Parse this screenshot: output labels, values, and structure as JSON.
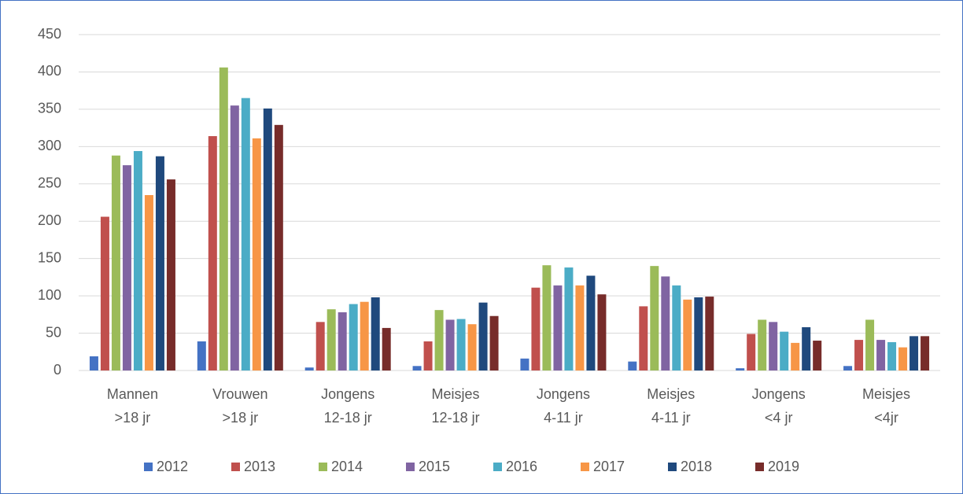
{
  "chart_data": {
    "type": "bar",
    "categories": [
      [
        "Mannen",
        ">18 jr"
      ],
      [
        "Vrouwen",
        ">18 jr"
      ],
      [
        "Jongens",
        "12-18 jr"
      ],
      [
        "Meisjes",
        "12-18 jr"
      ],
      [
        "Jongens",
        "4-11 jr"
      ],
      [
        "Meisjes",
        "4-11 jr"
      ],
      [
        "Jongens",
        "<4 jr"
      ],
      [
        "Meisjes",
        "<4jr"
      ]
    ],
    "series": [
      {
        "name": "2012",
        "color": "#4472c4",
        "values": [
          19,
          39,
          4,
          6,
          16,
          12,
          3,
          6
        ]
      },
      {
        "name": "2013",
        "color": "#c0504d",
        "values": [
          206,
          314,
          65,
          39,
          111,
          86,
          49,
          41
        ]
      },
      {
        "name": "2014",
        "color": "#9bbb59",
        "values": [
          288,
          406,
          82,
          81,
          141,
          140,
          68,
          68
        ]
      },
      {
        "name": "2015",
        "color": "#8064a2",
        "values": [
          275,
          355,
          78,
          68,
          114,
          126,
          65,
          41
        ]
      },
      {
        "name": "2016",
        "color": "#4bacc6",
        "values": [
          294,
          365,
          89,
          69,
          138,
          114,
          52,
          38
        ]
      },
      {
        "name": "2017",
        "color": "#f79646",
        "values": [
          235,
          311,
          92,
          62,
          114,
          95,
          37,
          31
        ]
      },
      {
        "name": "2018",
        "color": "#1f497d",
        "values": [
          287,
          351,
          98,
          91,
          127,
          98,
          58,
          46
        ]
      },
      {
        "name": "2019",
        "color": "#772c2a",
        "values": [
          256,
          329,
          57,
          73,
          102,
          99,
          40,
          46
        ]
      }
    ],
    "ylim": [
      0,
      450
    ],
    "yticks": [
      0,
      50,
      100,
      150,
      200,
      250,
      300,
      350,
      400,
      450
    ],
    "grid": true,
    "legend": "bottom"
  }
}
